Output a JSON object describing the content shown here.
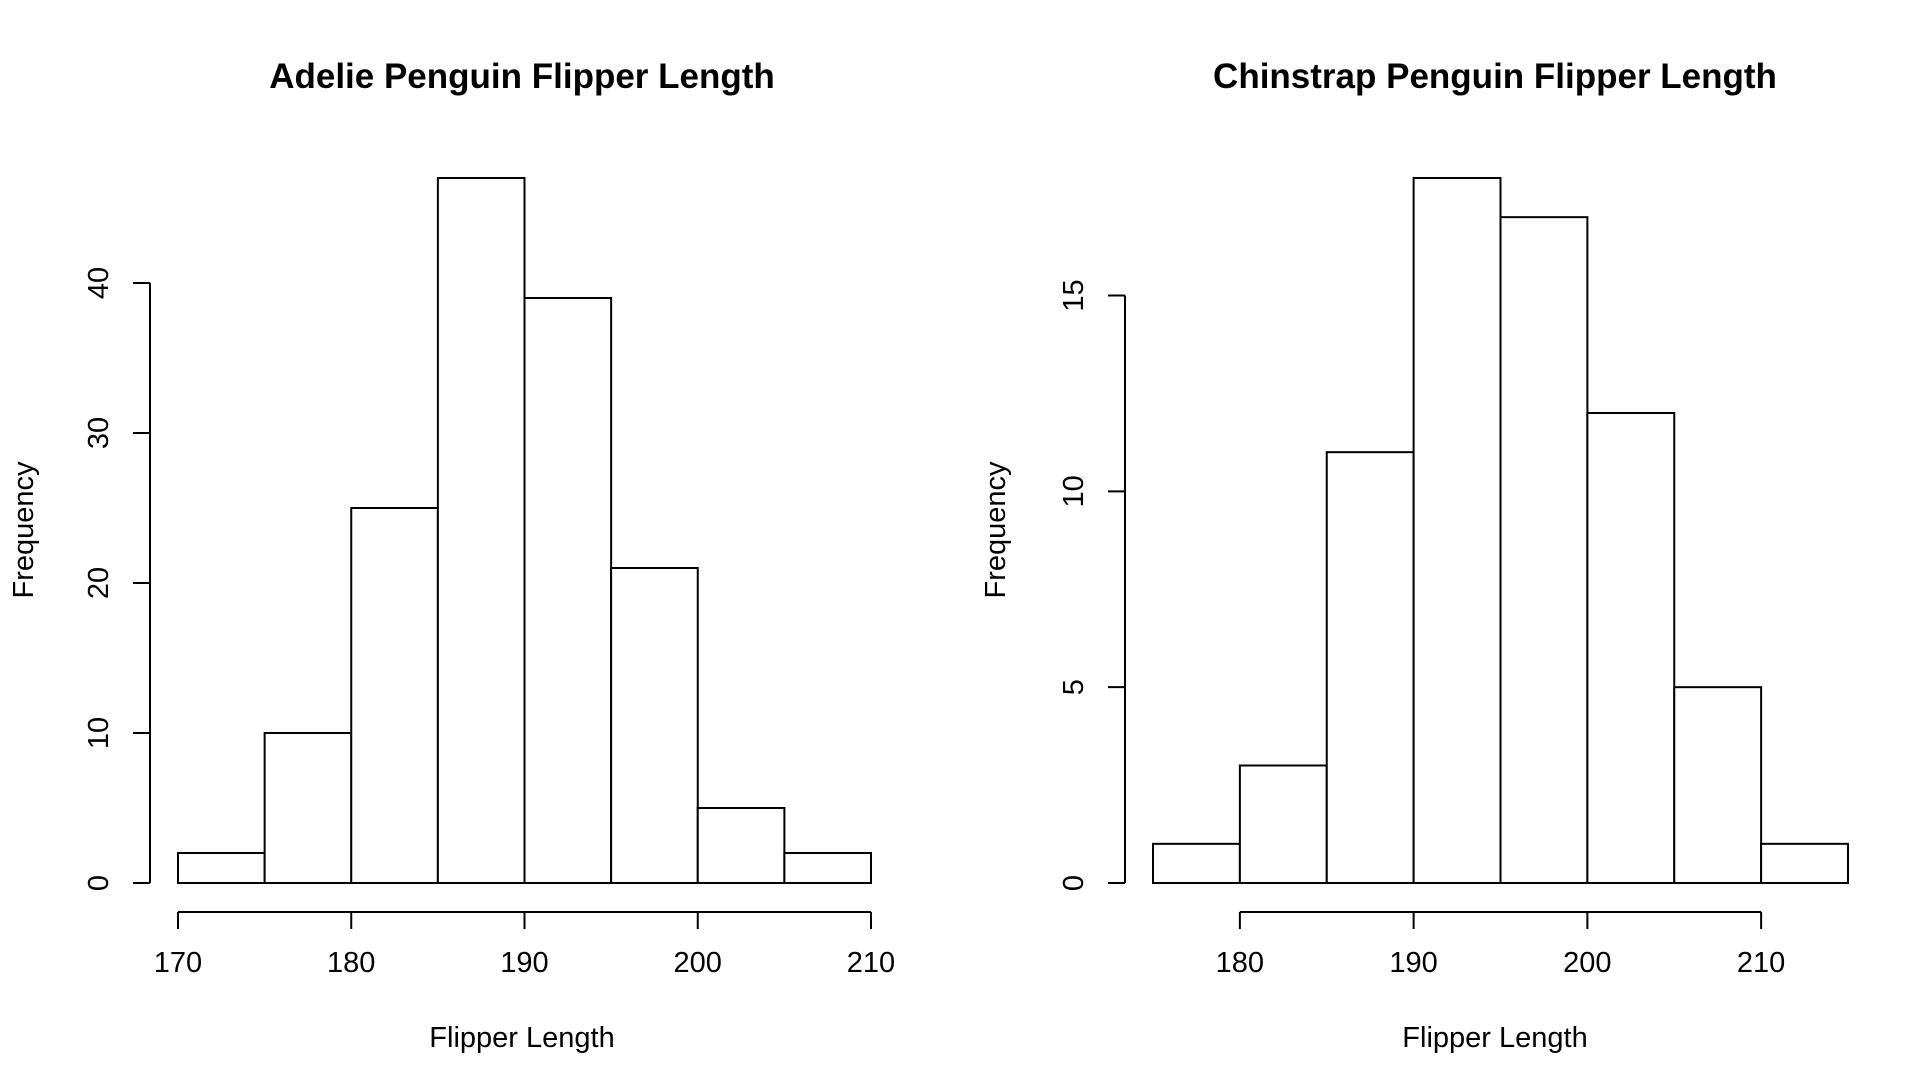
{
  "chart_data": [
    {
      "type": "bar",
      "title": "Adelie Penguin Flipper Length",
      "xlabel": "Flipper Length",
      "ylabel": "Frequency",
      "bin_edges": [
        170,
        175,
        180,
        185,
        190,
        195,
        200,
        205,
        210
      ],
      "values": [
        2,
        10,
        25,
        47,
        39,
        21,
        5,
        2
      ],
      "xlim": [
        170,
        210
      ],
      "ylim": [
        0,
        47
      ],
      "xticks": [
        170,
        180,
        190,
        200,
        210
      ],
      "yticks": [
        0,
        10,
        20,
        30,
        40
      ],
      "grid": false
    },
    {
      "type": "bar",
      "title": "Chinstrap Penguin Flipper Length",
      "xlabel": "Flipper Length",
      "ylabel": "Frequency",
      "bin_edges": [
        175,
        180,
        185,
        190,
        195,
        200,
        205,
        210,
        215
      ],
      "values": [
        1,
        3,
        11,
        18,
        17,
        12,
        5,
        1
      ],
      "xlim": [
        175,
        215
      ],
      "ylim": [
        0,
        18
      ],
      "xticks": [
        180,
        190,
        200,
        210
      ],
      "yticks": [
        0,
        5,
        10,
        15
      ],
      "grid": false
    }
  ]
}
